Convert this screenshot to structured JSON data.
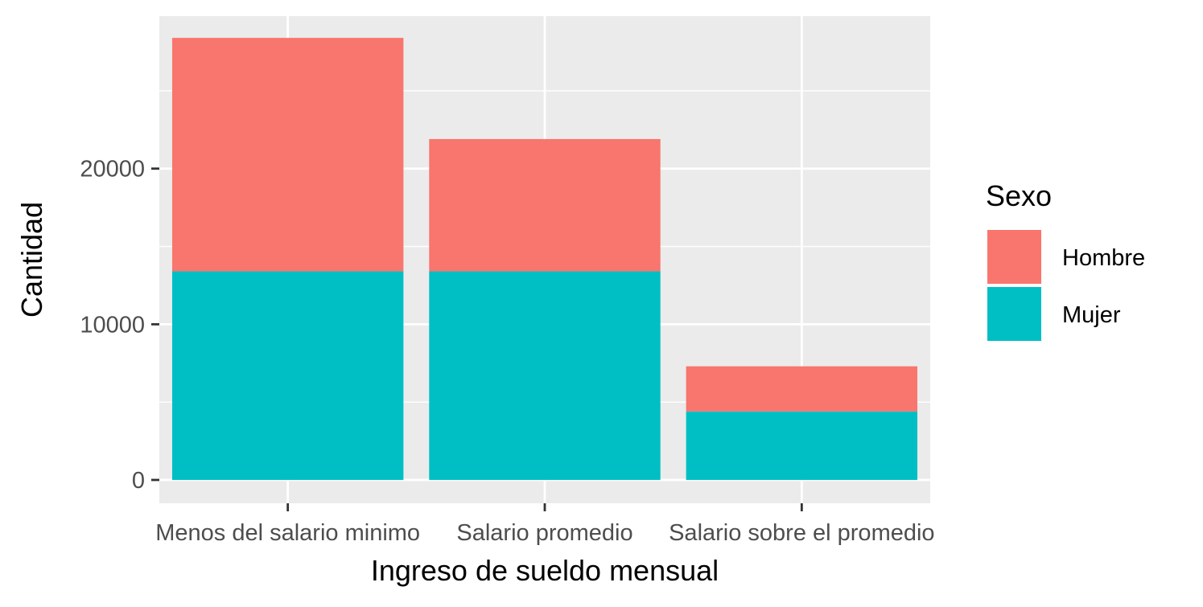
{
  "chart_data": {
    "type": "bar",
    "stacked": true,
    "categories": [
      "Menos del salario minimo",
      "Salario promedio",
      "Salario sobre el promedio"
    ],
    "series": [
      {
        "name": "Mujer",
        "values": [
          13400,
          13400,
          4400
        ],
        "color": "#00BFC4"
      },
      {
        "name": "Hombre",
        "values": [
          15000,
          8500,
          2900
        ],
        "color": "#F8766D"
      }
    ],
    "title": "",
    "xlabel": "Ingreso de sueldo mensual",
    "ylabel": "Cantidad",
    "ylim": [
      -1500,
      29800
    ],
    "yticks": [
      0,
      10000,
      20000
    ],
    "yticks_labels": [
      "0",
      "10000",
      "20000"
    ],
    "grid": true,
    "panel_background": "#EBEBEB",
    "grid_color": "#FFFFFF",
    "legend": {
      "title": "Sexo",
      "position": "right",
      "entries": [
        {
          "label": "Hombre",
          "color": "#F8766D"
        },
        {
          "label": "Mujer",
          "color": "#00BFC4"
        }
      ]
    }
  }
}
